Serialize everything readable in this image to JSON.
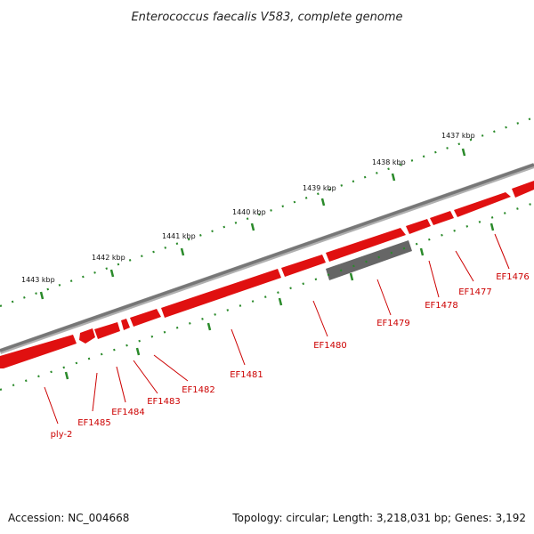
{
  "title": "Enterococcus faecalis V583, complete genome",
  "footer": {
    "accession": "Accession: NC_004668",
    "summary": "Topology: circular; Length: 3,218,031 bp; Genes: 3,192"
  },
  "colors": {
    "forward_gene": "#e01010",
    "other_gene": "#666666",
    "backbone": "#777777",
    "ticks": "#2a8a2a",
    "label_red": "#cc0000"
  },
  "ticks": [
    {
      "label": "1437 kbp"
    },
    {
      "label": "1438 kbp"
    },
    {
      "label": "1439 kbp"
    },
    {
      "label": "1440 kbp"
    },
    {
      "label": "1441 kbp"
    },
    {
      "label": "1442 kbp"
    },
    {
      "label": "1443 kbp"
    }
  ],
  "genes": [
    {
      "label": "EF1476"
    },
    {
      "label": "EF1477"
    },
    {
      "label": "EF1478"
    },
    {
      "label": "EF1479"
    },
    {
      "label": "EF1480"
    },
    {
      "label": "EF1481"
    },
    {
      "label": "EF1482"
    },
    {
      "label": "EF1483"
    },
    {
      "label": "EF1484"
    },
    {
      "label": "EF1485"
    },
    {
      "label": "ply-2"
    }
  ]
}
